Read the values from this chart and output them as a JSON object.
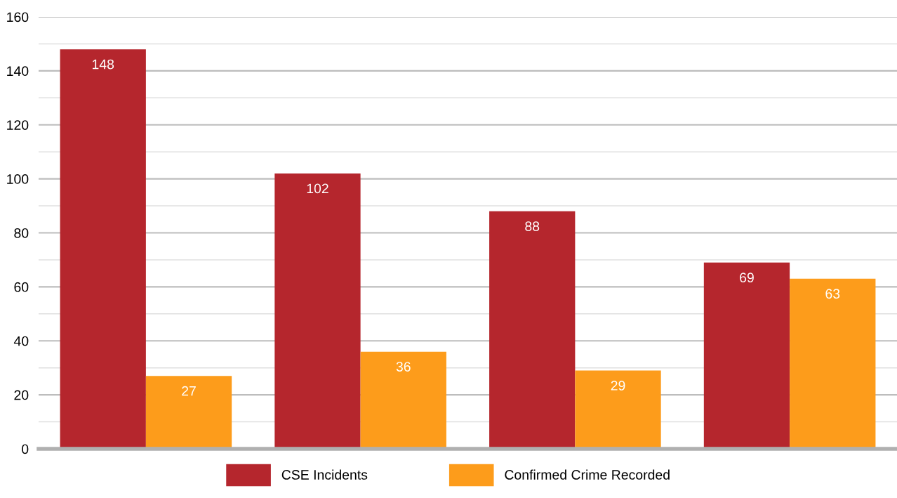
{
  "chart_data": {
    "type": "bar",
    "categories": [
      null,
      null,
      null,
      null
    ],
    "series": [
      {
        "name": "CSE Incidents",
        "color": "#b5262d",
        "values": [
          148,
          102,
          88,
          69
        ]
      },
      {
        "name": "Confirmed Crime Recorded",
        "color": "#fd9c1b",
        "values": [
          27,
          36,
          29,
          63
        ]
      }
    ],
    "ylim": [
      0,
      160
    ],
    "yticks": [
      0,
      {
        "value": 10,
        "label": null
      },
      20,
      {
        "value": 30,
        "label": null
      },
      40,
      {
        "value": 50,
        "label": null
      },
      60,
      {
        "value": 70,
        "label": null
      },
      80,
      {
        "value": 90,
        "label": null
      },
      100,
      {
        "value": 110,
        "label": null
      },
      120,
      {
        "value": 130,
        "label": null
      },
      140,
      {
        "value": 150,
        "label": null
      },
      160
    ],
    "grid": "y",
    "legend": "bottom",
    "data_labels": true
  }
}
